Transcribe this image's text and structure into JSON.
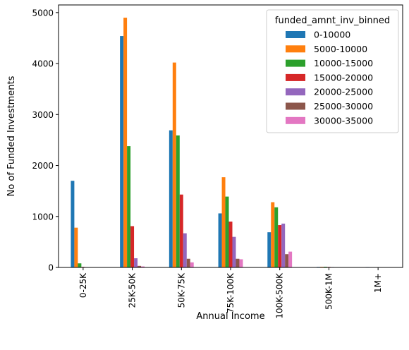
{
  "chart_data": {
    "type": "bar",
    "title": "",
    "xlabel": "Annual Income",
    "ylabel": "No of Funded Investments",
    "categories": [
      "0-25K",
      "25K-50K",
      "50K-75K",
      "75K-100K",
      "100K-500K",
      "500K-1M",
      "1M+"
    ],
    "ylim": [
      0,
      5150
    ],
    "yticks": [
      0,
      1000,
      2000,
      3000,
      4000,
      5000
    ],
    "grid": false,
    "legend_title": "funded_amnt_inv_binned",
    "legend_position": "top-right",
    "series": [
      {
        "name": "0-10000",
        "color": "#1f77b4",
        "values": [
          1700,
          4540,
          2690,
          1060,
          690,
          10,
          8
        ]
      },
      {
        "name": "5000-10000",
        "color": "#ff7f0e",
        "values": [
          780,
          4900,
          4020,
          1770,
          1280,
          12,
          5
        ]
      },
      {
        "name": "10000-15000",
        "color": "#2ca02c",
        "values": [
          80,
          2380,
          2590,
          1390,
          1180,
          14,
          3
        ]
      },
      {
        "name": "15000-20000",
        "color": "#d62728",
        "values": [
          10,
          810,
          1430,
          900,
          830,
          10,
          2
        ]
      },
      {
        "name": "20000-25000",
        "color": "#9467bd",
        "values": [
          5,
          180,
          670,
          600,
          860,
          8,
          2
        ]
      },
      {
        "name": "25000-30000",
        "color": "#8c564b",
        "values": [
          2,
          30,
          170,
          170,
          260,
          3,
          1
        ]
      },
      {
        "name": "30000-35000",
        "color": "#e377c2",
        "values": [
          2,
          20,
          100,
          160,
          310,
          4,
          1
        ]
      }
    ]
  }
}
